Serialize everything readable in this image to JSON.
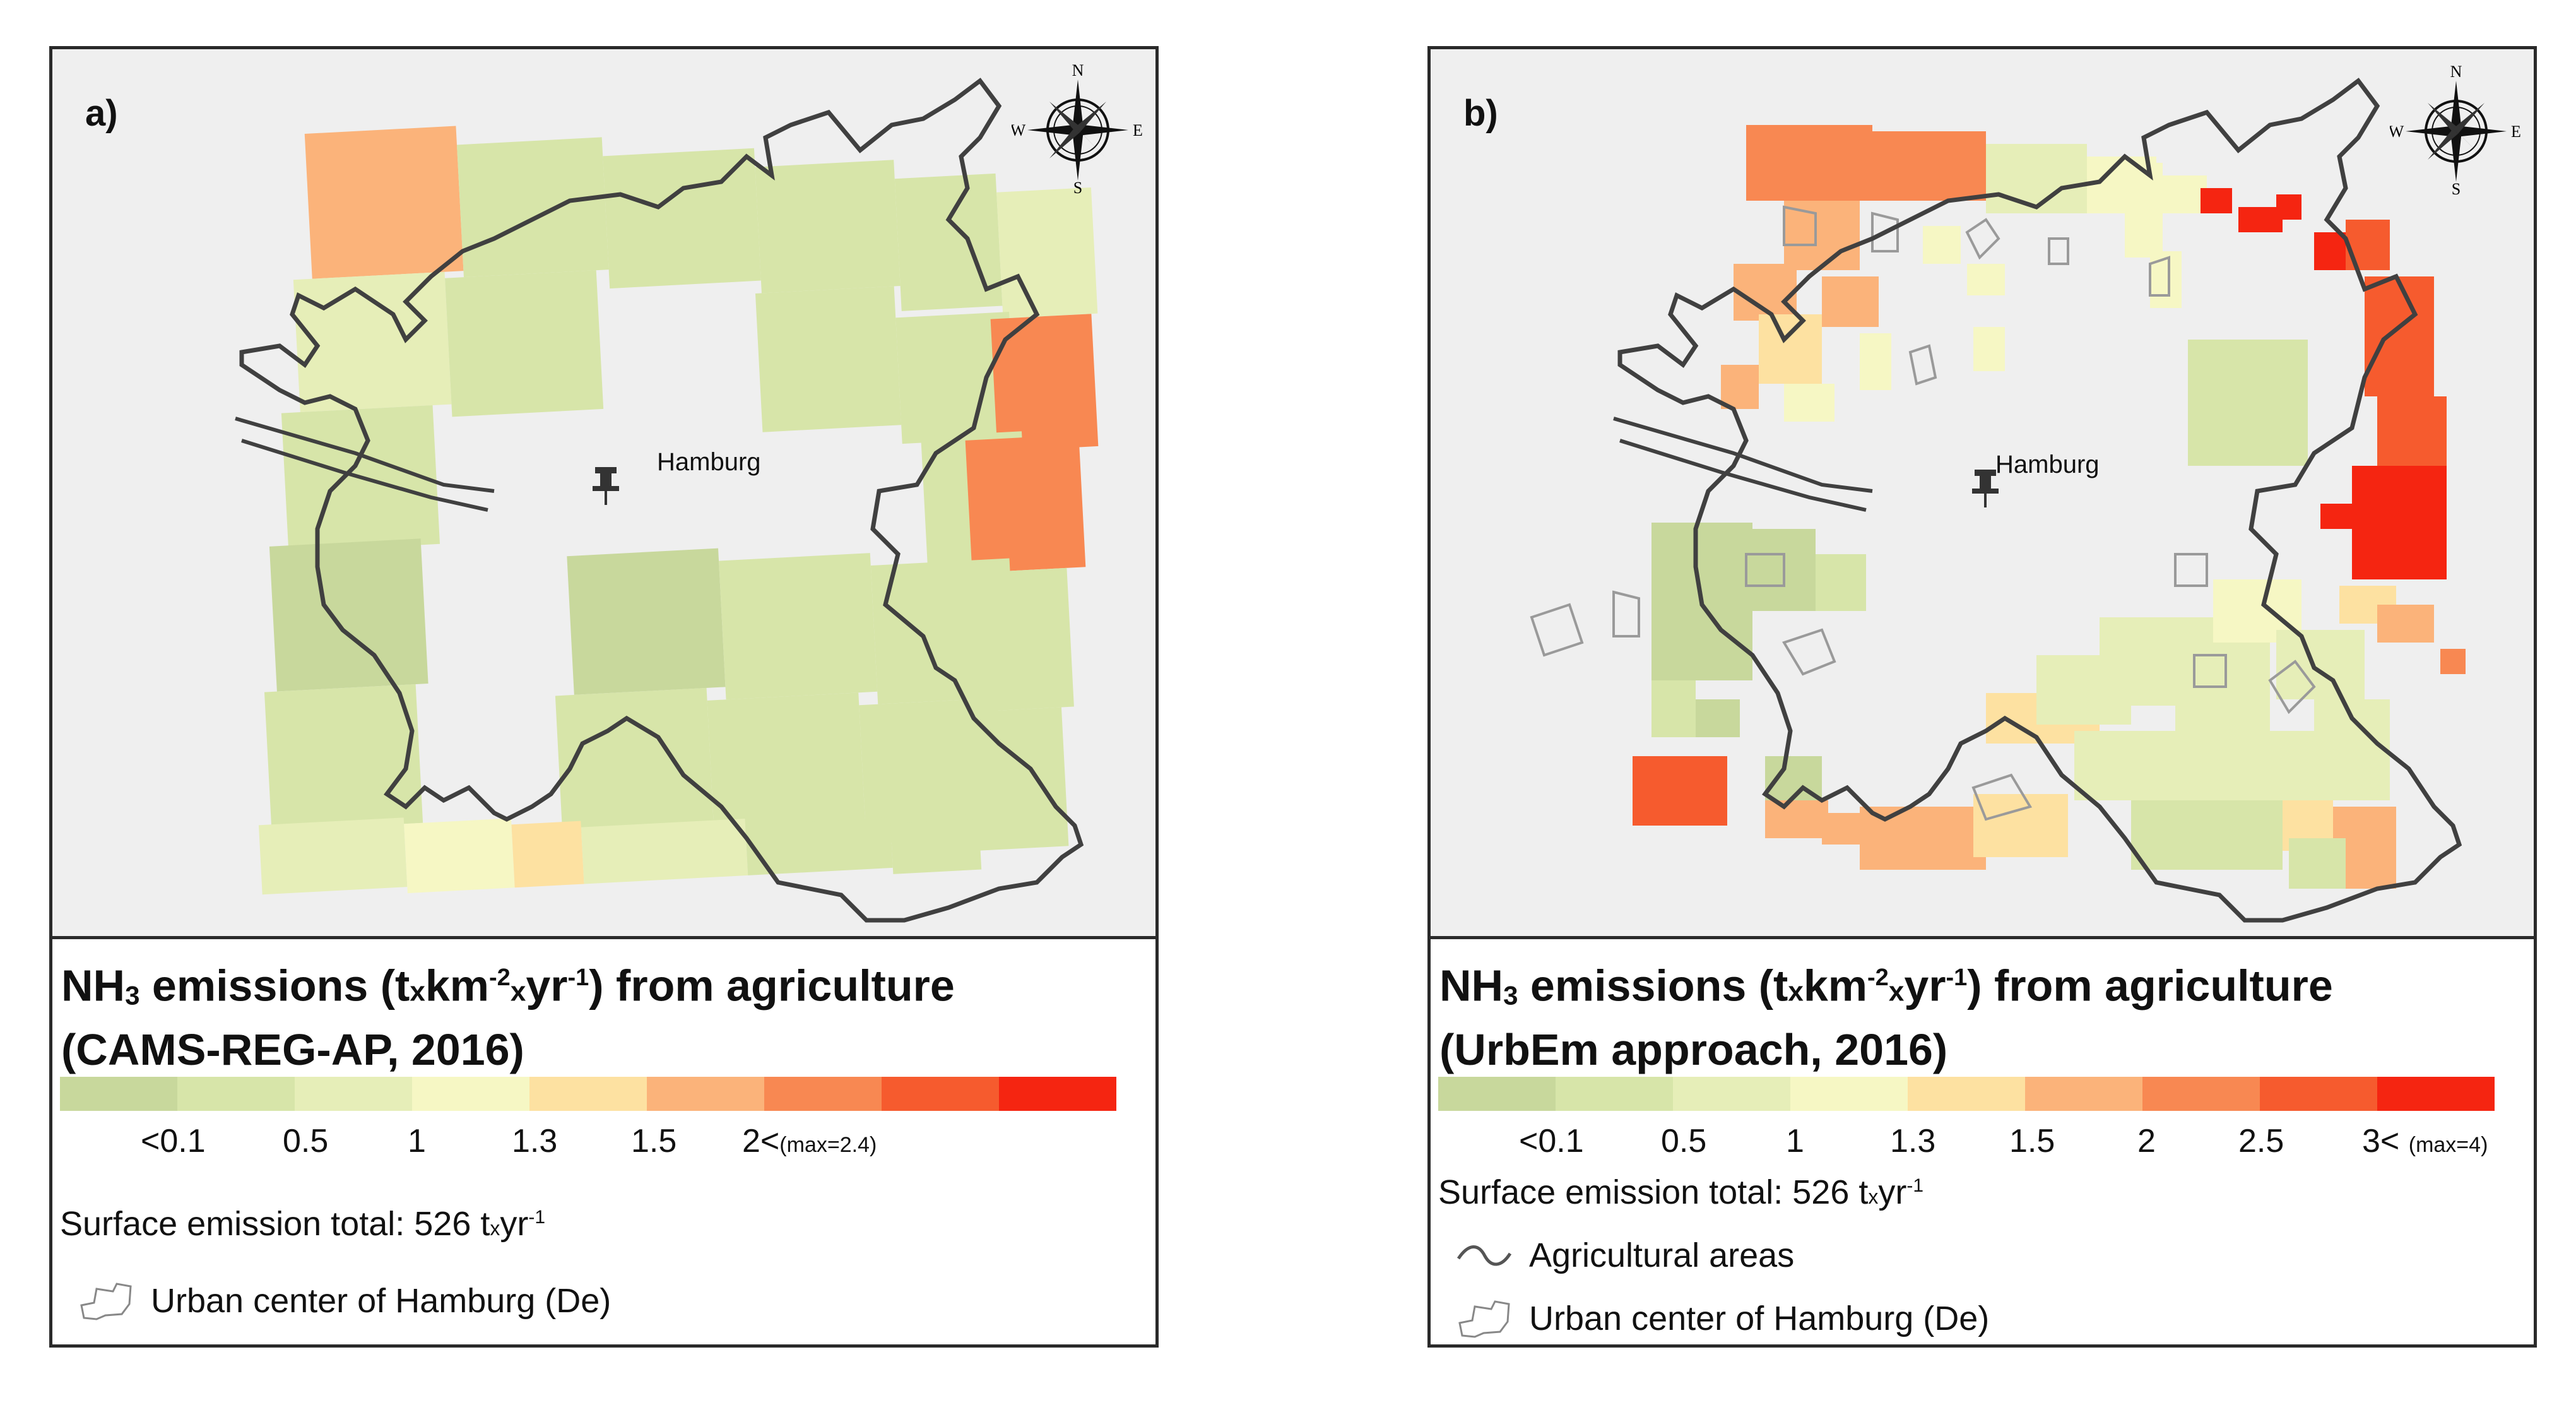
{
  "city": "Hamburg",
  "compass": {
    "n": "N",
    "s": "S",
    "e": "E",
    "w": "W"
  },
  "colors": {
    "bins": [
      "#c8d89c",
      "#d7e5a9",
      "#e6eeb8",
      "#f6f7c4",
      "#fde1a1",
      "#fbb37a",
      "#f88852",
      "#f65b2e",
      "#f52511"
    ],
    "outline": "#404040",
    "urban": "#efefef",
    "map_bg": "#efefef"
  },
  "panel_a": {
    "label": "a)",
    "legend_title_line1_pre": "NH",
    "legend_title_sub": "3",
    "legend_title_line1_mid": " emissions (t",
    "legend_title_line1_x1": "x",
    "legend_title_line1_km": "km",
    "legend_title_line1_exp1": "-2",
    "legend_title_line1_x2": "x",
    "legend_title_line1_yr": "yr",
    "legend_title_line1_exp2": "-1",
    "legend_title_line1_post": ") from agriculture",
    "legend_title_line2": "(CAMS-REG-AP, 2016)",
    "ticks": [
      "<0.1",
      "0.5",
      "1",
      "1.3",
      "1.5",
      "2<"
    ],
    "max_note": "(max=2.4)",
    "total_text": "Surface emission total: 526 t",
    "total_x": "x",
    "total_yr": "yr",
    "total_exp": "-1",
    "legend_items": [
      {
        "label": "Urban center of Hamburg (De)"
      }
    ]
  },
  "panel_b": {
    "label": "b)",
    "legend_title_line1_pre": "NH",
    "legend_title_sub": "3",
    "legend_title_line1_mid": " emissions (t",
    "legend_title_line1_x1": "x",
    "legend_title_line1_km": "km",
    "legend_title_line1_exp1": "-2",
    "legend_title_line1_x2": "x",
    "legend_title_line1_yr": "yr",
    "legend_title_line1_exp2": "-1",
    "legend_title_line1_post": ") from agriculture",
    "legend_title_line2": "(UrbEm approach, 2016)",
    "ticks": [
      "<0.1",
      "0.5",
      "1",
      "1.3",
      "1.5",
      "2",
      "2.5",
      "3<"
    ],
    "max_note": "(max=4)",
    "total_text": "Surface emission total: 526 t",
    "total_x": "x",
    "total_yr": "yr",
    "total_exp": "-1",
    "legend_items": [
      {
        "label": "Agricultural areas"
      },
      {
        "label": "Urban center of Hamburg (De)"
      }
    ]
  }
}
